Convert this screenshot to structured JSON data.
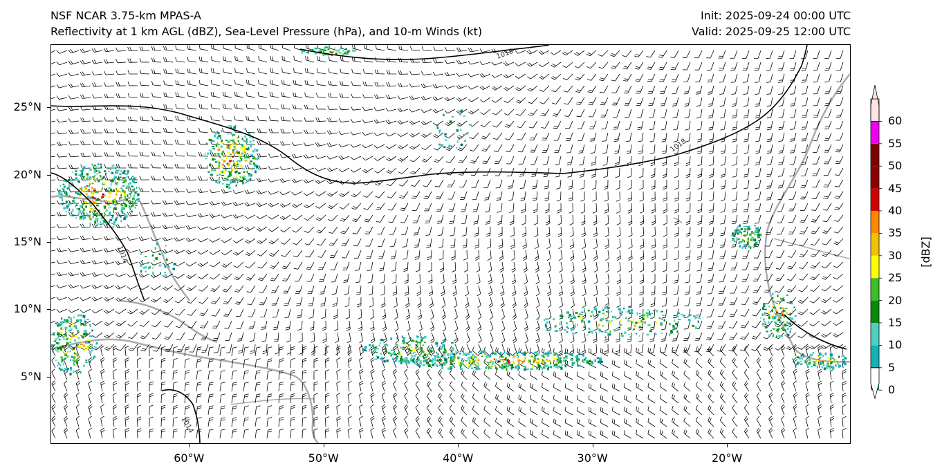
{
  "titles": {
    "left_line1": "NSF NCAR 3.75-km MPAS-A",
    "left_line2": "Reflectivity at 1 km AGL (dBZ), Sea-Level Pressure (hPa), and 10-m Winds (kt)",
    "right_line1": "Init: 2025-09-24 00:00 UTC",
    "right_line2": "Valid: 2025-09-25 12:00 UTC"
  },
  "axes": {
    "x_ticks": [
      "60°W",
      "50°W",
      "40°W",
      "30°W",
      "20°W"
    ],
    "y_ticks": [
      "25°N",
      "20°N",
      "15°N",
      "10°N",
      "5°N"
    ],
    "lon_range": [
      -70.3,
      -10.8
    ],
    "lat_range": [
      0.0,
      29.7
    ],
    "lon_values": [
      -60,
      -50,
      -40,
      -30,
      -20
    ],
    "lat_values": [
      25,
      20,
      15,
      10,
      5
    ]
  },
  "isobars": {
    "labels": [
      "1018",
      "1018",
      "1014",
      "1014"
    ]
  },
  "colorbar": {
    "unit_label": "[dBZ]",
    "tick_labels": [
      "0",
      "5",
      "10",
      "15",
      "20",
      "25",
      "30",
      "35",
      "40",
      "45",
      "50",
      "55",
      "60"
    ],
    "bins": [
      {
        "from": 0,
        "to": 5,
        "color": "#0b7c7c"
      },
      {
        "from": 5,
        "to": 10,
        "color": "#13b3b3"
      },
      {
        "from": 10,
        "to": 15,
        "color": "#4fd0c4"
      },
      {
        "from": 15,
        "to": 20,
        "color": "#0a8a0a"
      },
      {
        "from": 20,
        "to": 25,
        "color": "#3cbd2a"
      },
      {
        "from": 25,
        "to": 30,
        "color": "#ffff00"
      },
      {
        "from": 30,
        "to": 35,
        "color": "#f2c200"
      },
      {
        "from": 35,
        "to": 40,
        "color": "#ff8800"
      },
      {
        "from": 40,
        "to": 45,
        "color": "#d40000"
      },
      {
        "from": 45,
        "to": 50,
        "color": "#8b0000"
      },
      {
        "from": 50,
        "to": 55,
        "color": "#800000"
      },
      {
        "from": 55,
        "to": 60,
        "color": "#ee00ee"
      },
      {
        "from": 60,
        "to": 65,
        "color": "#ffe4e1"
      }
    ]
  },
  "colors": {
    "coast": "#aaaaaa",
    "isobar": "#000000",
    "barb": "#000000"
  }
}
